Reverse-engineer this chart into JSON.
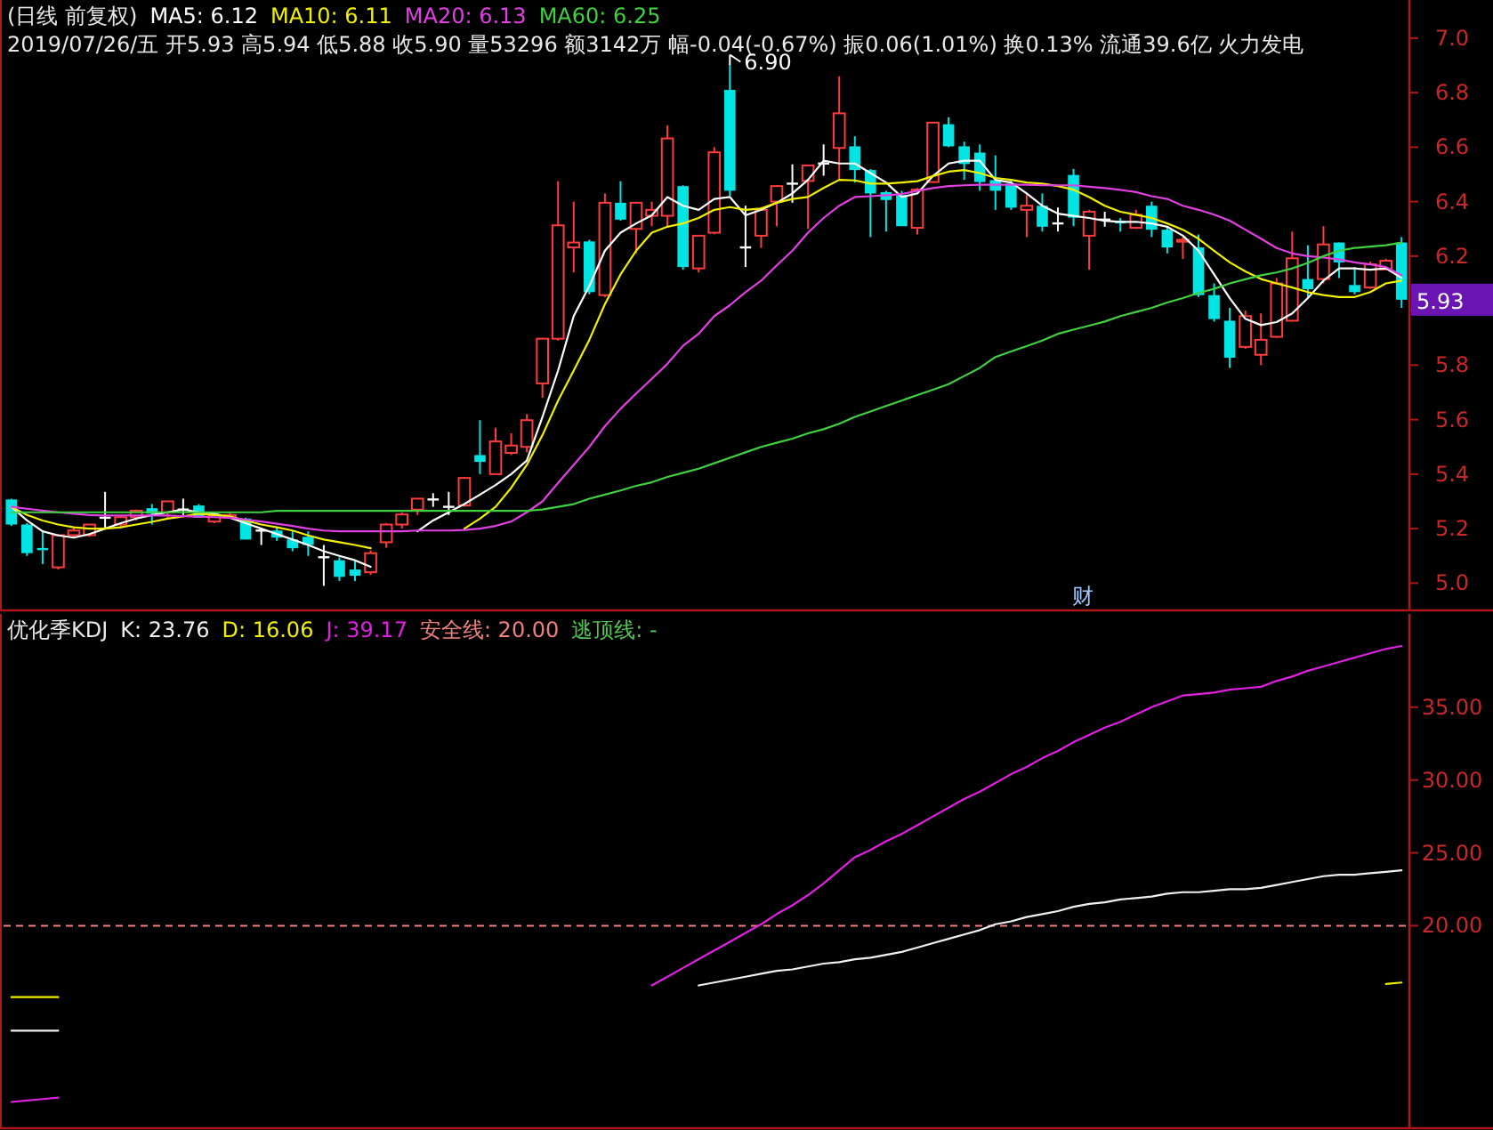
{
  "chart_data": [
    {
      "type": "candlestick",
      "title": "(日线 前复权)",
      "subtitle": "2019/07/26/五 开5.93 高5.94 低5.88 收5.90 量53296 额3142万 幅-0.04(-0.67%) 振0.06(1.01%) 换0.13% 流通39.6亿 火力发电",
      "legend": "top left",
      "categories": [
        null,
        null,
        null,
        null,
        null,
        null,
        null,
        null,
        null,
        null,
        null,
        null,
        null,
        null,
        null,
        null,
        null,
        null,
        null,
        null,
        null,
        null,
        null,
        null,
        null,
        null,
        null,
        null,
        null,
        null,
        null,
        null,
        null,
        null,
        null,
        null,
        null,
        null,
        null,
        null,
        null,
        null,
        null,
        null,
        null,
        null,
        null,
        null,
        null,
        null,
        null,
        null,
        null,
        null,
        null,
        null,
        null,
        null,
        null,
        null,
        null,
        null,
        null,
        null,
        null,
        null,
        null,
        null,
        null,
        null,
        null,
        null,
        null,
        null,
        null,
        null,
        null,
        null,
        null,
        null,
        null,
        null,
        null,
        null,
        null,
        null,
        null,
        null,
        null,
        null
      ],
      "ohlc": [
        [
          5.307,
          5.31,
          5.21,
          5.215
        ],
        [
          5.215,
          5.22,
          5.1,
          5.11
        ],
        [
          5.125,
          5.19,
          5.07,
          5.12
        ],
        [
          5.058,
          5.18,
          5.05,
          5.176
        ],
        [
          5.176,
          5.205,
          5.167,
          5.193
        ],
        [
          5.176,
          5.215,
          5.17,
          5.215
        ],
        [
          5.24,
          5.335,
          5.2,
          5.24
        ],
        [
          5.215,
          5.25,
          5.2,
          5.242
        ],
        [
          5.242,
          5.27,
          5.23,
          5.266
        ],
        [
          5.275,
          5.29,
          5.215,
          5.255
        ],
        [
          5.26,
          5.3,
          5.24,
          5.3
        ],
        [
          5.27,
          5.31,
          5.25,
          5.27
        ],
        [
          5.285,
          5.29,
          5.24,
          5.24
        ],
        [
          5.226,
          5.25,
          5.22,
          5.248
        ],
        [
          5.24,
          5.26,
          5.24,
          5.25
        ],
        [
          5.237,
          5.24,
          5.16,
          5.16
        ],
        [
          5.193,
          5.195,
          5.14,
          5.193
        ],
        [
          5.193,
          5.205,
          5.155,
          5.167
        ],
        [
          5.16,
          5.193,
          5.117,
          5.128
        ],
        [
          5.17,
          5.19,
          5.1,
          5.14
        ],
        [
          5.095,
          5.14,
          4.99,
          5.095
        ],
        [
          5.084,
          5.095,
          5.008,
          5.023
        ],
        [
          5.05,
          5.084,
          5.008,
          5.027
        ],
        [
          5.04,
          5.12,
          5.03,
          5.11
        ],
        [
          5.15,
          5.22,
          5.13,
          5.215
        ],
        [
          5.215,
          5.26,
          5.2,
          5.252
        ],
        [
          5.27,
          5.31,
          5.25,
          5.31
        ],
        [
          5.307,
          5.33,
          5.28,
          5.307
        ],
        [
          5.28,
          5.335,
          5.25,
          5.28
        ],
        [
          5.285,
          5.39,
          5.28,
          5.386
        ],
        [
          5.47,
          5.598,
          5.4,
          5.445
        ],
        [
          5.4,
          5.57,
          5.4,
          5.52
        ],
        [
          5.478,
          5.55,
          5.47,
          5.505
        ],
        [
          5.5,
          5.62,
          5.48,
          5.598
        ],
        [
          5.733,
          5.9,
          5.68,
          5.897
        ],
        [
          5.897,
          6.475,
          5.89,
          6.313
        ],
        [
          6.232,
          6.4,
          6.14,
          6.25
        ],
        [
          6.254,
          6.26,
          6.06,
          6.068
        ],
        [
          6.057,
          6.43,
          6.05,
          6.396
        ],
        [
          6.396,
          6.475,
          6.33,
          6.334
        ],
        [
          6.3,
          6.4,
          6.21,
          6.396
        ],
        [
          6.348,
          6.4,
          6.31,
          6.37
        ],
        [
          6.348,
          6.68,
          6.31,
          6.632
        ],
        [
          6.457,
          6.46,
          6.15,
          6.16
        ],
        [
          6.155,
          6.275,
          6.14,
          6.275
        ],
        [
          6.286,
          6.6,
          6.28,
          6.581
        ],
        [
          6.81,
          6.9,
          6.42,
          6.44
        ],
        [
          6.232,
          6.385,
          6.16,
          6.232
        ],
        [
          6.275,
          6.38,
          6.23,
          6.37
        ],
        [
          6.4,
          6.46,
          6.31,
          6.457
        ],
        [
          6.466,
          6.537,
          6.396,
          6.466
        ],
        [
          6.476,
          6.533,
          6.3,
          6.533
        ],
        [
          6.54,
          6.61,
          6.495,
          6.54
        ],
        [
          6.597,
          6.86,
          6.48,
          6.724
        ],
        [
          6.603,
          6.64,
          6.47,
          6.516
        ],
        [
          6.516,
          6.52,
          6.27,
          6.43
        ],
        [
          6.435,
          6.44,
          6.29,
          6.406
        ],
        [
          6.424,
          6.44,
          6.31,
          6.31
        ],
        [
          6.304,
          6.45,
          6.28,
          6.444
        ],
        [
          6.472,
          6.69,
          6.47,
          6.69
        ],
        [
          6.684,
          6.71,
          6.6,
          6.603
        ],
        [
          6.603,
          6.62,
          6.48,
          6.538
        ],
        [
          6.58,
          6.61,
          6.44,
          6.472
        ],
        [
          6.479,
          6.57,
          6.37,
          6.44
        ],
        [
          6.466,
          6.48,
          6.37,
          6.378
        ],
        [
          6.37,
          6.43,
          6.27,
          6.385
        ],
        [
          6.385,
          6.43,
          6.29,
          6.308
        ],
        [
          6.32,
          6.378,
          6.29,
          6.32
        ],
        [
          6.498,
          6.52,
          6.31,
          6.341
        ],
        [
          6.275,
          6.37,
          6.15,
          6.363
        ],
        [
          6.334,
          6.363,
          6.308,
          6.334
        ],
        [
          6.33,
          6.34,
          6.29,
          6.32
        ],
        [
          6.304,
          6.37,
          6.3,
          6.352
        ],
        [
          6.385,
          6.4,
          6.27,
          6.297
        ],
        [
          6.297,
          6.31,
          6.21,
          6.232
        ],
        [
          6.253,
          6.27,
          6.19,
          6.26
        ],
        [
          6.232,
          6.28,
          6.05,
          6.057
        ],
        [
          6.057,
          6.1,
          5.96,
          5.969
        ],
        [
          5.963,
          6.01,
          5.79,
          5.827
        ],
        [
          5.867,
          6.0,
          5.86,
          5.98
        ],
        [
          5.838,
          5.99,
          5.8,
          5.893
        ],
        [
          5.904,
          6.12,
          5.9,
          6.1
        ],
        [
          5.963,
          6.29,
          5.96,
          6.192
        ],
        [
          6.116,
          6.24,
          6.05,
          6.079
        ],
        [
          6.116,
          6.31,
          6.1,
          6.243
        ],
        [
          6.25,
          6.25,
          6.12,
          6.177
        ],
        [
          6.094,
          6.16,
          6.06,
          6.068
        ],
        [
          6.085,
          6.18,
          6.08,
          6.17
        ],
        [
          6.151,
          6.19,
          6.15,
          6.183
        ],
        [
          6.25,
          6.27,
          6.01,
          6.04
        ]
      ],
      "colors": [
        "#00e4e4",
        "#00e4e4",
        "#00e4e4",
        "#ff3c3c",
        "#ff3c3c",
        "#ff3c3c",
        "#ffffff",
        "#ff3c3c",
        "#ff3c3c",
        "#00e4e4",
        "#ff3c3c",
        "#ffffff",
        "#00e4e4",
        "#ff3c3c",
        "#ff3c3c",
        "#00e4e4",
        "#ffffff",
        "#00e4e4",
        "#00e4e4",
        "#00e4e4",
        "#ffffff",
        "#00e4e4",
        "#00e4e4",
        "#ff3c3c",
        "#ff3c3c",
        "#ff3c3c",
        "#ff3c3c",
        "#ffffff",
        "#ffffff",
        "#ff3c3c",
        "#00e4e4",
        "#ff3c3c",
        "#ff3c3c",
        "#ff3c3c",
        "#ff3c3c",
        "#ff3c3c",
        "#ff3c3c",
        "#00e4e4",
        "#ff3c3c",
        "#00e4e4",
        "#ff3c3c",
        "#ff3c3c",
        "#ff3c3c",
        "#00e4e4",
        "#ff3c3c",
        "#ff3c3c",
        "#00e4e4",
        "#ffffff",
        "#ff3c3c",
        "#ff3c3c",
        "#ffffff",
        "#ff3c3c",
        "#ffffff",
        "#ff3c3c",
        "#00e4e4",
        "#00e4e4",
        "#00e4e4",
        "#00e4e4",
        "#ff3c3c",
        "#ff3c3c",
        "#00e4e4",
        "#00e4e4",
        "#00e4e4",
        "#00e4e4",
        "#00e4e4",
        "#ff3c3c",
        "#00e4e4",
        "#ffffff",
        "#00e4e4",
        "#ff3c3c",
        "#ffffff",
        "#00e4e4",
        "#ff3c3c",
        "#00e4e4",
        "#00e4e4",
        "#ff3c3c",
        "#00e4e4",
        "#00e4e4",
        "#00e4e4",
        "#ff3c3c",
        "#ff3c3c",
        "#ff3c3c",
        "#ff3c3c",
        "#00e4e4",
        "#ff3c3c",
        "#00e4e4",
        "#00e4e4",
        "#ff3c3c",
        "#ff3c3c",
        "#00e4e4"
      ],
      "series": [
        {
          "name": "MA5: 6.12",
          "type": "line",
          "color": "#ffffff",
          "values": [
            5.28,
            5.23,
            5.19,
            5.175,
            5.167,
            5.18,
            5.2,
            5.22,
            5.237,
            5.25,
            5.26,
            5.27,
            5.26,
            5.255,
            5.24,
            5.22,
            5.2,
            5.18,
            5.16,
            5.14,
            5.117,
            5.1,
            5.084,
            5.06,
            null,
            null,
            5.19,
            5.23,
            5.26,
            5.29,
            5.325,
            5.36,
            5.4,
            5.45,
            5.61,
            5.78,
            5.98,
            6.09,
            6.22,
            6.286,
            6.32,
            6.35,
            6.417,
            6.385,
            6.37,
            6.41,
            6.417,
            6.35,
            6.37,
            6.396,
            6.43,
            6.48,
            6.55,
            6.54,
            6.54,
            6.505,
            6.47,
            6.417,
            6.43,
            6.494,
            6.54,
            6.55,
            6.55,
            6.48,
            6.47,
            6.43,
            6.385,
            6.356,
            6.348,
            6.34,
            6.33,
            6.326,
            6.326,
            6.32,
            6.308,
            6.275,
            6.22,
            6.133,
            6.046,
            5.97,
            5.947,
            5.958,
            5.99,
            6.046,
            6.11,
            6.155,
            6.155,
            6.15,
            6.155,
            6.12
          ]
        },
        {
          "name": "MA10: 6.11",
          "type": "line",
          "color": "#f0f000",
          "values": [
            5.28,
            5.25,
            5.23,
            5.215,
            5.205,
            5.2,
            5.2,
            5.205,
            5.215,
            5.225,
            5.237,
            5.245,
            5.255,
            5.25,
            5.245,
            5.23,
            5.215,
            5.205,
            5.193,
            5.175,
            5.16,
            5.15,
            5.14,
            5.128,
            null,
            null,
            null,
            null,
            null,
            5.2,
            5.237,
            5.28,
            5.35,
            5.434,
            5.543,
            5.67,
            5.78,
            5.893,
            6.024,
            6.133,
            6.22,
            6.286,
            6.308,
            6.32,
            6.34,
            6.37,
            6.38,
            6.37,
            6.375,
            6.396,
            6.41,
            6.417,
            6.45,
            6.48,
            6.478,
            6.466,
            6.466,
            6.47,
            6.475,
            6.494,
            6.51,
            6.516,
            6.505,
            6.487,
            6.48,
            6.47,
            6.466,
            6.457,
            6.444,
            6.417,
            6.385,
            6.363,
            6.352,
            6.34,
            6.32,
            6.297,
            6.264,
            6.22,
            6.177,
            6.144,
            6.116,
            6.1,
            6.085,
            6.068,
            6.057,
            6.05,
            6.05,
            6.068,
            6.1,
            6.11
          ]
        },
        {
          "name": "MA20: 6.13",
          "type": "line",
          "color": "#e040e0",
          "values": [
            5.28,
            5.273,
            5.266,
            5.26,
            5.255,
            5.25,
            5.248,
            5.248,
            5.248,
            5.248,
            5.248,
            5.246,
            5.244,
            5.242,
            5.24,
            5.233,
            5.226,
            5.218,
            5.21,
            5.2,
            5.193,
            5.19,
            5.19,
            5.19,
            5.19,
            5.19,
            5.193,
            5.193,
            5.193,
            5.195,
            5.2,
            5.21,
            5.226,
            5.26,
            5.3,
            5.368,
            5.434,
            5.5,
            5.576,
            5.64,
            5.696,
            5.75,
            5.805,
            5.871,
            5.915,
            5.98,
            6.02,
            6.068,
            6.11,
            6.166,
            6.22,
            6.286,
            6.34,
            6.385,
            6.417,
            6.42,
            6.424,
            6.428,
            6.44,
            6.45,
            6.457,
            6.46,
            6.462,
            6.462,
            6.462,
            6.462,
            6.46,
            6.46,
            6.46,
            6.455,
            6.45,
            6.443,
            6.435,
            6.42,
            6.41,
            6.385,
            6.37,
            6.352,
            6.33,
            6.297,
            6.264,
            6.23,
            6.21,
            6.2,
            6.195,
            6.188,
            6.177,
            6.17,
            6.16,
            6.13
          ]
        },
        {
          "name": "MA60: 6.25",
          "type": "line",
          "color": "#40d040",
          "values": [
            5.26,
            5.26,
            5.26,
            5.26,
            5.26,
            5.26,
            5.26,
            5.26,
            5.26,
            5.26,
            5.26,
            5.26,
            5.26,
            5.26,
            5.26,
            5.26,
            5.26,
            5.265,
            5.265,
            5.265,
            5.265,
            5.265,
            5.265,
            5.265,
            5.265,
            5.265,
            5.265,
            5.265,
            5.265,
            5.265,
            5.265,
            5.265,
            5.265,
            5.265,
            5.27,
            5.28,
            5.29,
            5.31,
            5.325,
            5.34,
            5.357,
            5.37,
            5.39,
            5.405,
            5.42,
            5.44,
            5.46,
            5.48,
            5.5,
            5.515,
            5.53,
            5.55,
            5.565,
            5.585,
            5.61,
            5.63,
            5.65,
            5.67,
            5.69,
            5.71,
            5.73,
            5.76,
            5.79,
            5.83,
            5.85,
            5.87,
            5.89,
            5.915,
            5.93,
            5.945,
            5.96,
            5.98,
            5.995,
            6.01,
            6.03,
            6.046,
            6.065,
            6.08,
            6.1,
            6.115,
            6.13,
            6.14,
            6.155,
            6.175,
            6.2,
            6.22,
            6.23,
            6.235,
            6.24,
            6.25
          ]
        }
      ],
      "ylim": [
        4.9,
        7.14
      ],
      "yticks": [
        {
          "value": 5,
          "label": "5.0"
        },
        5.2,
        5.4,
        5.6,
        5.8,
        {
          "value": 6,
          "label": null
        },
        6.2,
        6.4,
        6.6,
        6.8,
        {
          "value": 7,
          "label": "7.0"
        }
      ],
      "annotations": [
        "6.90",
        "5.93",
        "财"
      ]
    },
    {
      "type": "line",
      "title": "优化季KDJ",
      "legend": "top left",
      "categories": [
        null,
        null,
        null,
        null,
        null,
        null,
        null,
        null,
        null,
        null,
        null,
        null,
        null,
        null,
        null,
        null,
        null,
        null,
        null,
        null,
        null,
        null,
        null,
        null,
        null,
        null,
        null,
        null,
        null,
        null,
        null,
        null,
        null,
        null,
        null,
        null,
        null,
        null,
        null,
        null,
        null,
        null,
        null,
        null,
        null,
        null,
        null,
        null,
        null,
        null,
        null,
        null,
        null,
        null,
        null,
        null,
        null,
        null,
        null,
        null,
        null,
        null,
        null,
        null,
        null,
        null,
        null,
        null,
        null,
        null,
        null,
        null,
        null,
        null,
        null,
        null,
        null,
        null,
        null,
        null,
        null,
        null,
        null,
        null,
        null,
        null,
        null,
        null,
        null,
        null
      ],
      "series": [
        {
          "name": "K: 23.76",
          "color": "#f0f0f0",
          "values": [
            12.8,
            12.8,
            12.8,
            12.8,
            null,
            null,
            null,
            null,
            null,
            null,
            null,
            null,
            null,
            null,
            null,
            null,
            null,
            null,
            null,
            null,
            null,
            null,
            null,
            null,
            null,
            null,
            null,
            null,
            null,
            null,
            null,
            null,
            null,
            null,
            null,
            null,
            null,
            null,
            null,
            null,
            null,
            null,
            null,
            null,
            15.9,
            16.1,
            16.3,
            16.5,
            16.7,
            16.9,
            17.0,
            17.2,
            17.4,
            17.5,
            17.7,
            17.8,
            18.0,
            18.2,
            18.5,
            18.8,
            19.1,
            19.4,
            19.7,
            20.1,
            20.3,
            20.6,
            20.8,
            21.0,
            21.3,
            21.5,
            21.6,
            21.8,
            21.9,
            22.0,
            22.2,
            22.3,
            22.3,
            22.4,
            22.5,
            22.5,
            22.6,
            22.8,
            23.0,
            23.2,
            23.4,
            23.5,
            23.5,
            23.6,
            23.7,
            23.8
          ]
        },
        {
          "name": "D: 16.06",
          "color": "#f0f000",
          "values": [
            15.1,
            15.1,
            15.1,
            15.1,
            null,
            null,
            null,
            null,
            null,
            null,
            null,
            null,
            null,
            null,
            null,
            null,
            null,
            null,
            null,
            null,
            null,
            null,
            null,
            null,
            null,
            null,
            null,
            null,
            null,
            null,
            null,
            null,
            null,
            null,
            null,
            null,
            null,
            null,
            null,
            null,
            null,
            null,
            null,
            null,
            null,
            null,
            null,
            null,
            null,
            null,
            null,
            null,
            null,
            null,
            null,
            null,
            null,
            null,
            null,
            null,
            null,
            null,
            null,
            null,
            null,
            null,
            null,
            null,
            null,
            null,
            null,
            null,
            null,
            null,
            null,
            null,
            null,
            null,
            null,
            null,
            null,
            null,
            null,
            null,
            null,
            null,
            null,
            null,
            16.0,
            16.1
          ]
        },
        {
          "name": "J: 39.17",
          "color": "#e020e0",
          "values": [
            7.9,
            8.0,
            8.1,
            8.2,
            null,
            null,
            null,
            null,
            null,
            null,
            null,
            null,
            null,
            null,
            null,
            null,
            null,
            null,
            null,
            null,
            null,
            null,
            null,
            null,
            null,
            null,
            null,
            null,
            null,
            null,
            null,
            null,
            null,
            null,
            null,
            null,
            null,
            null,
            null,
            null,
            null,
            15.9,
            16.5,
            17.1,
            17.7,
            18.3,
            18.9,
            19.5,
            20.1,
            20.8,
            21.4,
            22.1,
            22.9,
            23.8,
            24.7,
            25.2,
            25.8,
            26.3,
            26.9,
            27.5,
            28.1,
            28.7,
            29.2,
            29.8,
            30.4,
            30.9,
            31.5,
            32.0,
            32.6,
            33.1,
            33.6,
            34.0,
            34.5,
            35.0,
            35.4,
            35.8,
            35.9,
            36.0,
            36.2,
            36.3,
            36.4,
            36.8,
            37.1,
            37.5,
            37.8,
            38.1,
            38.4,
            38.7,
            39.0,
            39.2
          ]
        }
      ],
      "ylim": [
        6.1,
        41.4
      ],
      "yticks": [
        {
          "value": 20,
          "label": "20.00"
        },
        {
          "value": 25,
          "label": "25.00"
        },
        {
          "value": 30,
          "label": "30.00"
        },
        {
          "value": 35,
          "label": "35.00"
        }
      ],
      "ref_lines": [
        {
          "axis": "y",
          "value": 20,
          "label": "安全线: 20.00",
          "color": "#f08080",
          "line_style": "dashed"
        }
      ],
      "annotations": [
        "逃顶线: -"
      ]
    }
  ]
}
